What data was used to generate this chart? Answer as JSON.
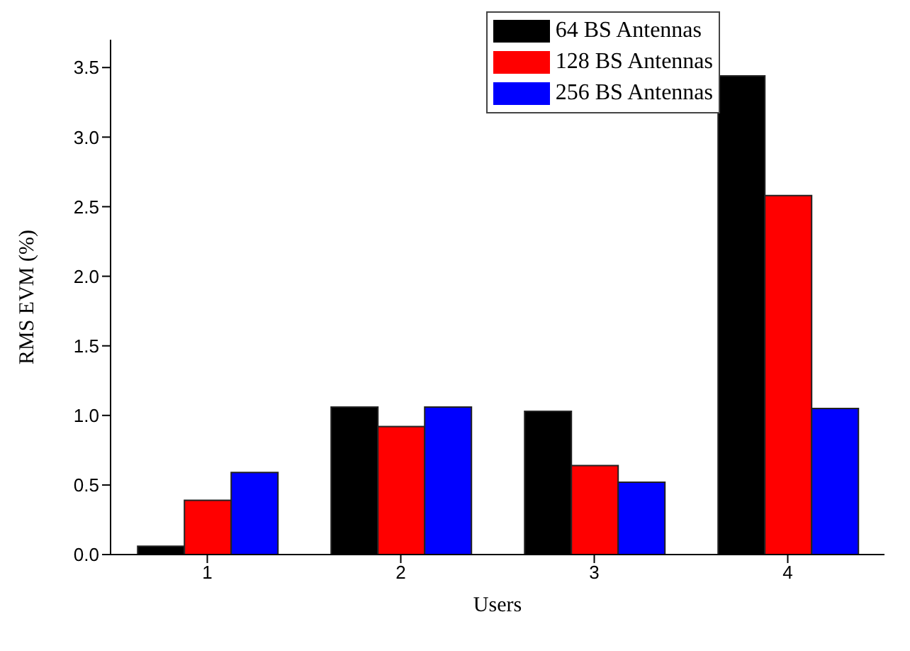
{
  "chart_data": {
    "type": "bar",
    "xlabel": "Users",
    "ylabel": "RMS EVM (%)",
    "categories": [
      "1",
      "2",
      "3",
      "4"
    ],
    "series": [
      {
        "name": "64 BS Antennas",
        "color": "#000000",
        "values": [
          0.06,
          1.06,
          1.03,
          3.44
        ]
      },
      {
        "name": "128 BS Antennas",
        "color": "#ff0000",
        "values": [
          0.39,
          0.92,
          0.64,
          2.58
        ]
      },
      {
        "name": "256 BS Antennas",
        "color": "#0000ff",
        "values": [
          0.59,
          1.06,
          0.52,
          1.05
        ]
      }
    ],
    "ylim": [
      0,
      3.7
    ],
    "yticks": [
      {
        "value": 0,
        "label": "0.0"
      },
      {
        "value": 0.5,
        "label": "0.5"
      },
      {
        "value": 1,
        "label": "1.0"
      },
      {
        "value": 1.5,
        "label": "1.5"
      },
      {
        "value": 2,
        "label": "2.0"
      },
      {
        "value": 2.5,
        "label": "2.5"
      },
      {
        "value": 3,
        "label": "3.0"
      },
      {
        "value": 3.5,
        "label": "3.5"
      }
    ],
    "grid": false,
    "legend": "top right"
  }
}
